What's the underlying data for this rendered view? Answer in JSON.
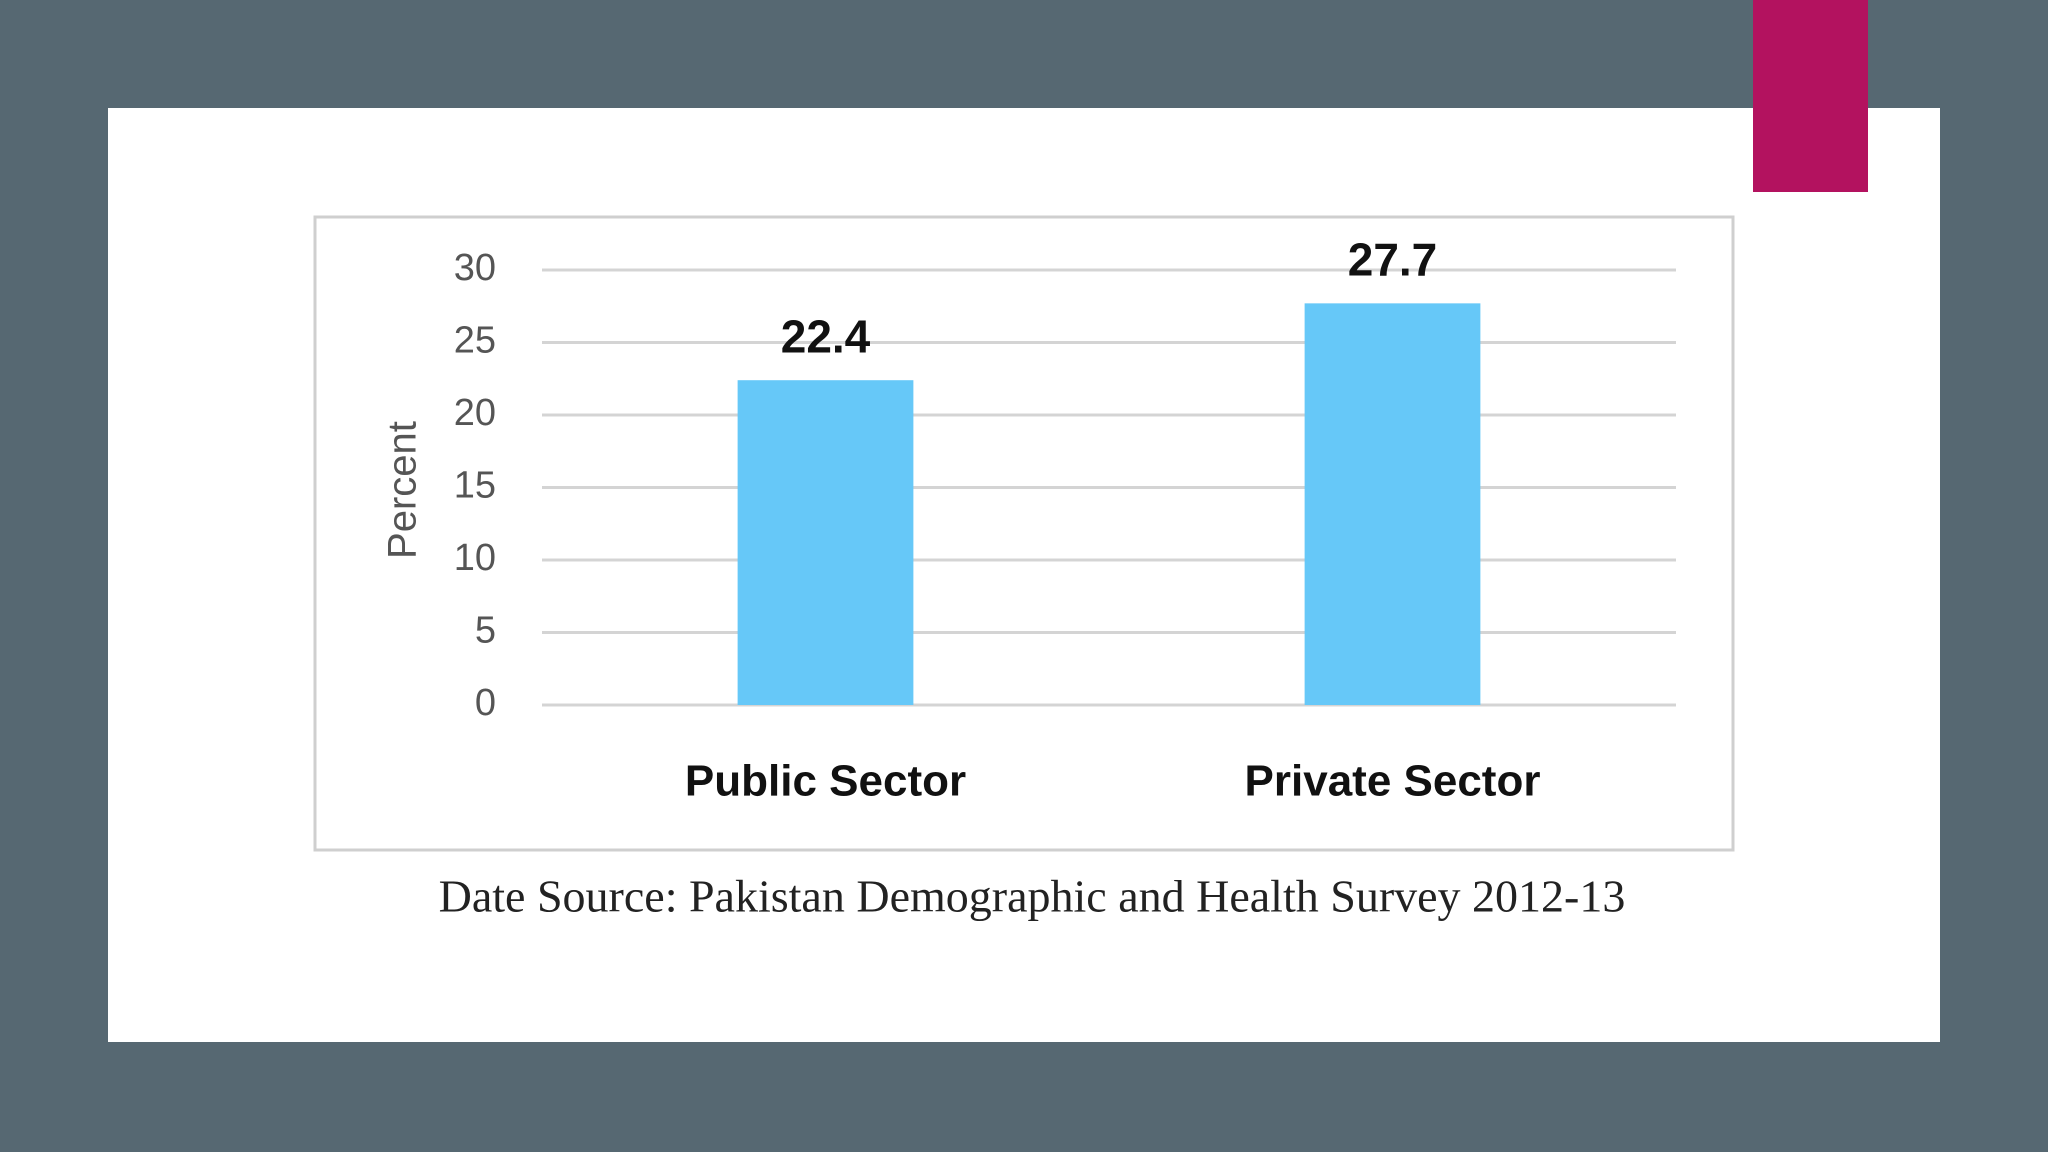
{
  "chart_data": {
    "type": "bar",
    "y_label": "Percent",
    "categories": [
      "Public Sector",
      "Private Sector"
    ],
    "values": [
      22.4,
      27.7
    ],
    "color": "#66c8f8",
    "ylim": [
      0,
      30
    ],
    "yticks": [
      0,
      5,
      10,
      15,
      20,
      25,
      30
    ],
    "grid": true,
    "caption": "Date Source: Pakistan Demographic and Health Survey 2012-13"
  }
}
